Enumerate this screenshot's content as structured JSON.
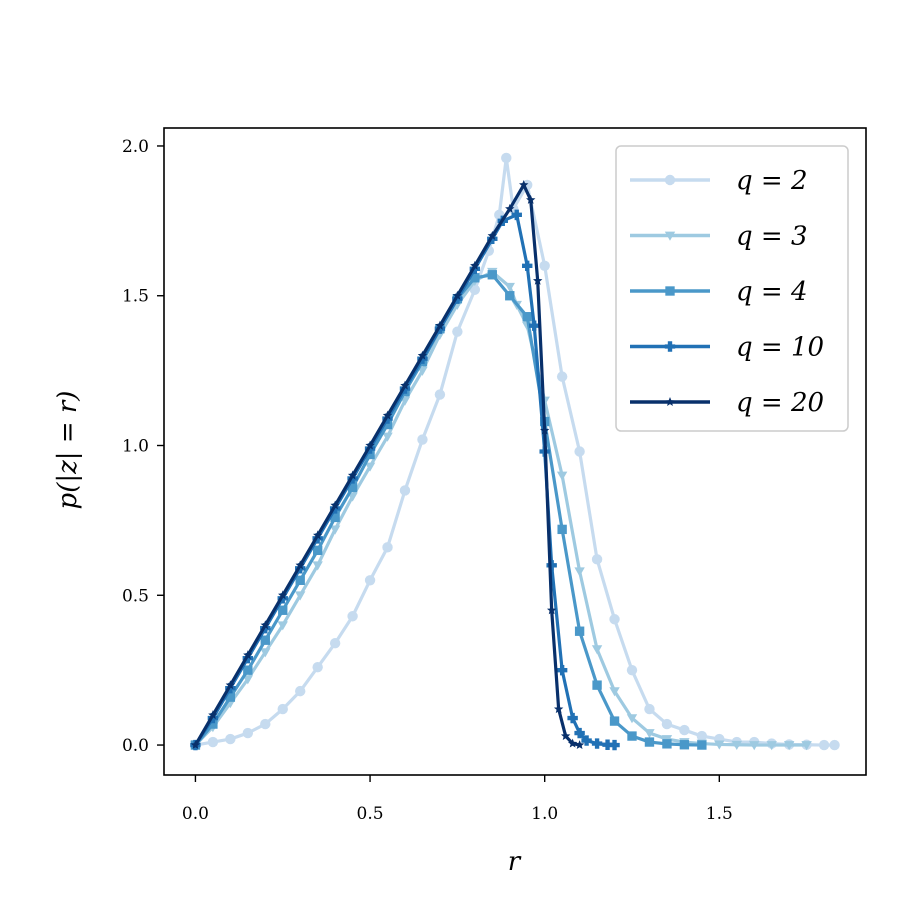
{
  "chart_data": {
    "type": "line",
    "xlabel": "r",
    "ylabel": "p(|z| = r)",
    "xlim": [
      -0.09,
      1.92
    ],
    "ylim": [
      -0.1,
      2.06
    ],
    "xticks": [
      0.0,
      0.5,
      1.0,
      1.5
    ],
    "xtick_labels": [
      "0.0",
      "0.5",
      "1.0",
      "1.5"
    ],
    "yticks": [
      0.0,
      0.5,
      1.0,
      1.5,
      2.0
    ],
    "ytick_labels": [
      "0.0",
      "0.5",
      "1.0",
      "1.5",
      "2.0"
    ],
    "grid": false,
    "legend_position": "top-right",
    "series": [
      {
        "name": "q = 2",
        "color": "#c6dbef",
        "marker": "circle",
        "x": [
          0.0,
          0.05,
          0.1,
          0.15,
          0.2,
          0.25,
          0.3,
          0.35,
          0.4,
          0.45,
          0.5,
          0.55,
          0.6,
          0.65,
          0.7,
          0.75,
          0.8,
          0.84,
          0.87,
          0.89,
          0.91,
          0.95,
          1.0,
          1.05,
          1.1,
          1.15,
          1.2,
          1.25,
          1.3,
          1.35,
          1.4,
          1.45,
          1.5,
          1.55,
          1.6,
          1.65,
          1.7,
          1.75,
          1.8,
          1.83
        ],
        "y": [
          0.0,
          0.01,
          0.02,
          0.04,
          0.07,
          0.12,
          0.18,
          0.26,
          0.34,
          0.43,
          0.55,
          0.66,
          0.85,
          1.02,
          1.17,
          1.38,
          1.52,
          1.65,
          1.77,
          1.96,
          1.79,
          1.87,
          1.6,
          1.23,
          0.98,
          0.62,
          0.42,
          0.25,
          0.12,
          0.07,
          0.05,
          0.03,
          0.02,
          0.01,
          0.01,
          0.005,
          0.002,
          0.001,
          0.0,
          0.0
        ]
      },
      {
        "name": "q = 3",
        "color": "#9ecae1",
        "marker": "triangle-down",
        "x": [
          0.0,
          0.05,
          0.1,
          0.15,
          0.2,
          0.25,
          0.3,
          0.35,
          0.4,
          0.45,
          0.5,
          0.55,
          0.6,
          0.65,
          0.7,
          0.75,
          0.8,
          0.85,
          0.9,
          0.92,
          0.95,
          1.0,
          1.05,
          1.1,
          1.15,
          1.2,
          1.25,
          1.3,
          1.35,
          1.4,
          1.45,
          1.5,
          1.55,
          1.6,
          1.65,
          1.7,
          1.75
        ],
        "y": [
          0.0,
          0.06,
          0.14,
          0.22,
          0.31,
          0.4,
          0.5,
          0.6,
          0.72,
          0.83,
          0.93,
          1.03,
          1.15,
          1.25,
          1.37,
          1.47,
          1.55,
          1.58,
          1.53,
          1.47,
          1.4,
          1.15,
          0.9,
          0.58,
          0.32,
          0.18,
          0.09,
          0.04,
          0.02,
          0.01,
          0.005,
          0.002,
          0.001,
          0.0,
          0.0,
          0.0,
          0.0
        ]
      },
      {
        "name": "q = 4",
        "color": "#4a98c9",
        "marker": "square",
        "x": [
          0.0,
          0.05,
          0.1,
          0.15,
          0.2,
          0.25,
          0.3,
          0.35,
          0.4,
          0.45,
          0.5,
          0.55,
          0.6,
          0.65,
          0.7,
          0.75,
          0.8,
          0.85,
          0.9,
          0.95,
          1.0,
          1.05,
          1.1,
          1.15,
          1.2,
          1.25,
          1.3,
          1.35,
          1.4,
          1.45
        ],
        "y": [
          0.0,
          0.07,
          0.16,
          0.25,
          0.35,
          0.45,
          0.55,
          0.65,
          0.76,
          0.86,
          0.97,
          1.07,
          1.18,
          1.28,
          1.39,
          1.49,
          1.56,
          1.57,
          1.5,
          1.43,
          1.08,
          0.72,
          0.38,
          0.2,
          0.08,
          0.03,
          0.01,
          0.004,
          0.001,
          0.0
        ]
      },
      {
        "name": "q = 10",
        "color": "#2171b5",
        "marker": "plus",
        "x": [
          0.0,
          0.05,
          0.1,
          0.15,
          0.2,
          0.25,
          0.3,
          0.35,
          0.4,
          0.45,
          0.5,
          0.55,
          0.6,
          0.65,
          0.7,
          0.75,
          0.8,
          0.85,
          0.88,
          0.92,
          0.95,
          0.97,
          1.0,
          1.02,
          1.05,
          1.08,
          1.1,
          1.12,
          1.15,
          1.18,
          1.2
        ],
        "y": [
          0.0,
          0.09,
          0.19,
          0.29,
          0.39,
          0.49,
          0.59,
          0.69,
          0.79,
          0.89,
          0.99,
          1.09,
          1.19,
          1.29,
          1.39,
          1.49,
          1.59,
          1.69,
          1.75,
          1.77,
          1.6,
          1.4,
          0.98,
          0.6,
          0.25,
          0.09,
          0.04,
          0.015,
          0.005,
          0.001,
          0.0
        ]
      },
      {
        "name": "q = 20",
        "color": "#08306b",
        "marker": "star",
        "x": [
          0.0,
          0.05,
          0.1,
          0.15,
          0.2,
          0.25,
          0.3,
          0.35,
          0.4,
          0.45,
          0.5,
          0.55,
          0.6,
          0.65,
          0.7,
          0.75,
          0.8,
          0.85,
          0.9,
          0.94,
          0.96,
          0.98,
          1.0,
          1.02,
          1.04,
          1.06,
          1.08,
          1.1
        ],
        "y": [
          0.0,
          0.1,
          0.2,
          0.3,
          0.4,
          0.5,
          0.6,
          0.7,
          0.8,
          0.9,
          1.0,
          1.1,
          1.2,
          1.3,
          1.4,
          1.5,
          1.6,
          1.7,
          1.79,
          1.87,
          1.82,
          1.55,
          1.05,
          0.45,
          0.12,
          0.03,
          0.005,
          0.0
        ]
      }
    ]
  }
}
